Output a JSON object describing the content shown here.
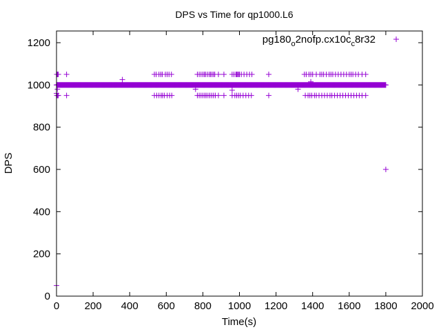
{
  "chart_data": {
    "type": "scatter",
    "title": "DPS vs Time for qp1000.L6",
    "xlabel": "Time(s)",
    "ylabel": "DPS",
    "xlim": [
      0,
      2000
    ],
    "ylim": [
      0,
      1260
    ],
    "xticks": [
      0,
      200,
      400,
      600,
      800,
      1000,
      1200,
      1400,
      1600,
      1800,
      2000
    ],
    "yticks": [
      0,
      200,
      400,
      600,
      800,
      1000,
      1200
    ],
    "grid": false,
    "legend": {
      "position": "top-right",
      "label_main": "pg180",
      "label_sub1": "o",
      "label_mid": "2nofp.cx10c",
      "label_sub2": "c",
      "label_end": "8r32"
    },
    "color": "#9400d3",
    "marker": "plus",
    "series": [
      {
        "name": "pg180_o2nofp.cx10c_c8r32",
        "dense_band": {
          "x_start": 0,
          "x_end": 1800,
          "step": 1,
          "y": 1000
        },
        "points": [
          [
            0,
            50
          ],
          [
            1800,
            600
          ],
          [
            360,
            1025
          ],
          [
            0,
            960
          ],
          [
            5,
            980
          ],
          [
            760,
            980
          ],
          [
            960,
            975
          ],
          [
            1320,
            980
          ],
          [
            1390,
            1015
          ],
          [
            1400,
            1000
          ],
          [
            2,
            1050
          ],
          [
            6,
            1050
          ],
          [
            10,
            1050
          ],
          [
            55,
            1050
          ],
          [
            2,
            950
          ],
          [
            6,
            950
          ],
          [
            10,
            950
          ],
          [
            55,
            950
          ],
          [
            535,
            1050
          ],
          [
            545,
            1050
          ],
          [
            560,
            1050
          ],
          [
            570,
            1050
          ],
          [
            578,
            1050
          ],
          [
            595,
            1050
          ],
          [
            605,
            1050
          ],
          [
            615,
            1050
          ],
          [
            628,
            1050
          ],
          [
            535,
            950
          ],
          [
            548,
            950
          ],
          [
            560,
            950
          ],
          [
            572,
            950
          ],
          [
            580,
            950
          ],
          [
            590,
            950
          ],
          [
            605,
            950
          ],
          [
            618,
            950
          ],
          [
            630,
            950
          ],
          [
            770,
            1050
          ],
          [
            780,
            1050
          ],
          [
            790,
            1050
          ],
          [
            800,
            1050
          ],
          [
            808,
            1050
          ],
          [
            815,
            1050
          ],
          [
            825,
            1050
          ],
          [
            835,
            1050
          ],
          [
            842,
            1050
          ],
          [
            850,
            1050
          ],
          [
            858,
            1050
          ],
          [
            865,
            1050
          ],
          [
            885,
            1050
          ],
          [
            915,
            1050
          ],
          [
            770,
            950
          ],
          [
            780,
            950
          ],
          [
            790,
            950
          ],
          [
            800,
            950
          ],
          [
            810,
            950
          ],
          [
            818,
            950
          ],
          [
            828,
            950
          ],
          [
            838,
            950
          ],
          [
            848,
            950
          ],
          [
            858,
            950
          ],
          [
            868,
            950
          ],
          [
            885,
            950
          ],
          [
            915,
            950
          ],
          [
            960,
            1050
          ],
          [
            970,
            1050
          ],
          [
            980,
            1050
          ],
          [
            985,
            1050
          ],
          [
            990,
            1050
          ],
          [
            995,
            1050
          ],
          [
            1000,
            1050
          ],
          [
            1010,
            1050
          ],
          [
            1025,
            1050
          ],
          [
            1040,
            1050
          ],
          [
            1055,
            1050
          ],
          [
            1068,
            1050
          ],
          [
            1160,
            1050
          ],
          [
            960,
            950
          ],
          [
            975,
            950
          ],
          [
            985,
            950
          ],
          [
            995,
            950
          ],
          [
            1005,
            950
          ],
          [
            1020,
            950
          ],
          [
            1035,
            950
          ],
          [
            1050,
            950
          ],
          [
            1065,
            950
          ],
          [
            1160,
            950
          ],
          [
            1355,
            1050
          ],
          [
            1365,
            1050
          ],
          [
            1380,
            1050
          ],
          [
            1390,
            1050
          ],
          [
            1400,
            1050
          ],
          [
            1420,
            1050
          ],
          [
            1440,
            1050
          ],
          [
            1450,
            1050
          ],
          [
            1460,
            1050
          ],
          [
            1475,
            1050
          ],
          [
            1490,
            1050
          ],
          [
            1500,
            1050
          ],
          [
            1510,
            1050
          ],
          [
            1525,
            1050
          ],
          [
            1540,
            1050
          ],
          [
            1555,
            1050
          ],
          [
            1570,
            1050
          ],
          [
            1585,
            1050
          ],
          [
            1600,
            1050
          ],
          [
            1610,
            1050
          ],
          [
            1620,
            1050
          ],
          [
            1635,
            1050
          ],
          [
            1650,
            1050
          ],
          [
            1670,
            1050
          ],
          [
            1690,
            1050
          ],
          [
            1360,
            950
          ],
          [
            1375,
            950
          ],
          [
            1385,
            950
          ],
          [
            1395,
            950
          ],
          [
            1410,
            950
          ],
          [
            1420,
            950
          ],
          [
            1435,
            950
          ],
          [
            1450,
            950
          ],
          [
            1465,
            950
          ],
          [
            1480,
            950
          ],
          [
            1495,
            950
          ],
          [
            1505,
            950
          ],
          [
            1520,
            950
          ],
          [
            1535,
            950
          ],
          [
            1550,
            950
          ],
          [
            1565,
            950
          ],
          [
            1580,
            950
          ],
          [
            1595,
            950
          ],
          [
            1610,
            950
          ],
          [
            1625,
            950
          ],
          [
            1640,
            950
          ],
          [
            1655,
            950
          ],
          [
            1670,
            950
          ],
          [
            1690,
            950
          ]
        ]
      }
    ]
  }
}
